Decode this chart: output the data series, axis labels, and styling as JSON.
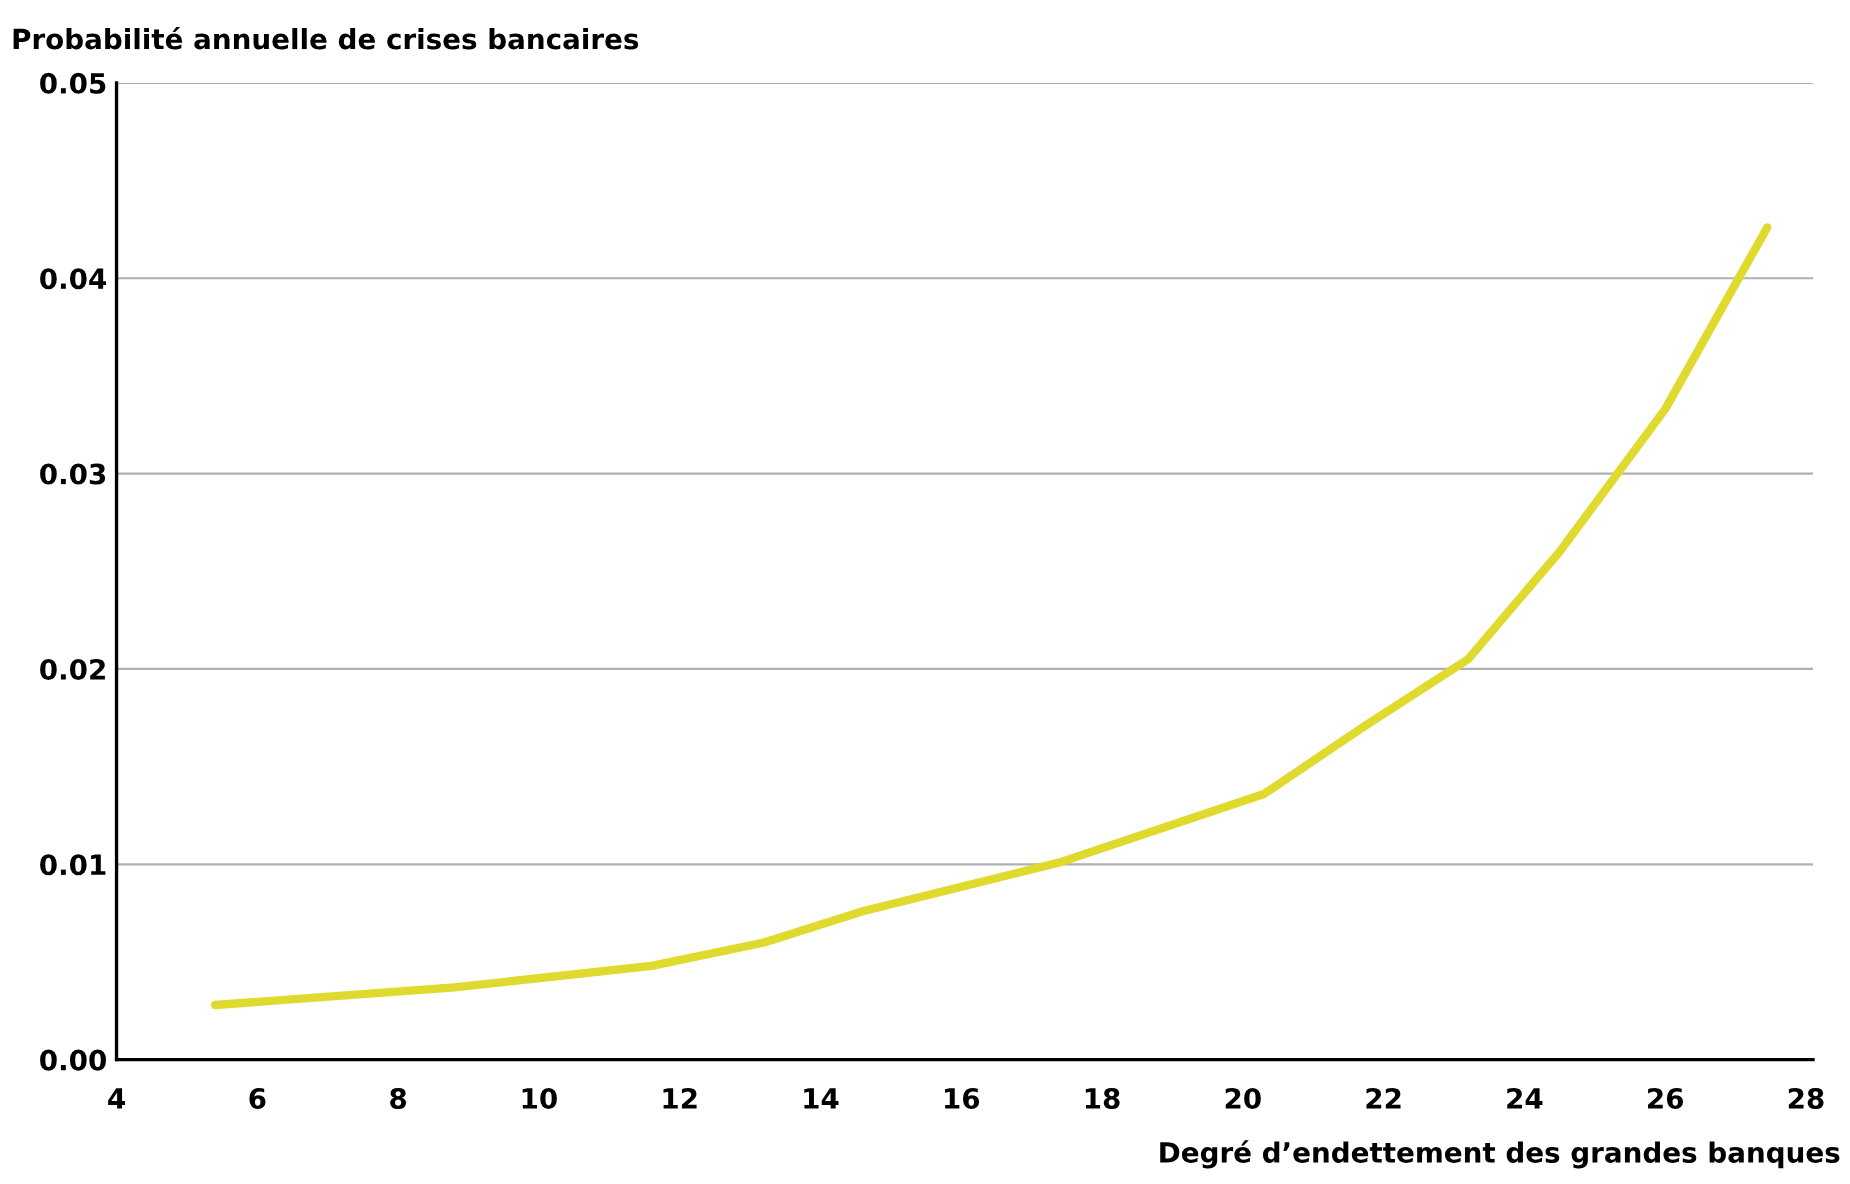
{
  "chart_data": {
    "type": "line",
    "ylabel": "Probabilité annuelle de crises bancaires",
    "xlabel": "Degré d’endettement des grandes banques",
    "x": [
      5.4,
      8.8,
      11.6,
      13.2,
      14.6,
      17.4,
      20.3,
      21.7,
      23.2,
      24.5,
      26.0,
      27.45
    ],
    "series": [
      {
        "color": "#e0d92e",
        "values": [
          0.0028,
          0.0037,
          0.0048,
          0.006,
          0.0076,
          0.0101,
          0.0136,
          0.017,
          0.0205,
          0.026,
          0.0333,
          0.0426
        ]
      }
    ],
    "xlim": [
      4,
      28.1
    ],
    "xticks": [
      4,
      6,
      8,
      10,
      12,
      14,
      16,
      18,
      20,
      22,
      24,
      26,
      28
    ],
    "ylim": [
      0,
      0.05
    ],
    "yticks": [
      {
        "value": 0,
        "label": "0.00"
      },
      {
        "value": 0.01,
        "label": "0.01"
      },
      {
        "value": 0.02,
        "label": "0.02"
      },
      {
        "value": 0.03,
        "label": "0.03"
      },
      {
        "value": 0.04,
        "label": "0.04"
      },
      {
        "value": 0.05,
        "label": "0.05"
      }
    ],
    "grid": "y",
    "marker": "none",
    "line_style": "solid"
  }
}
